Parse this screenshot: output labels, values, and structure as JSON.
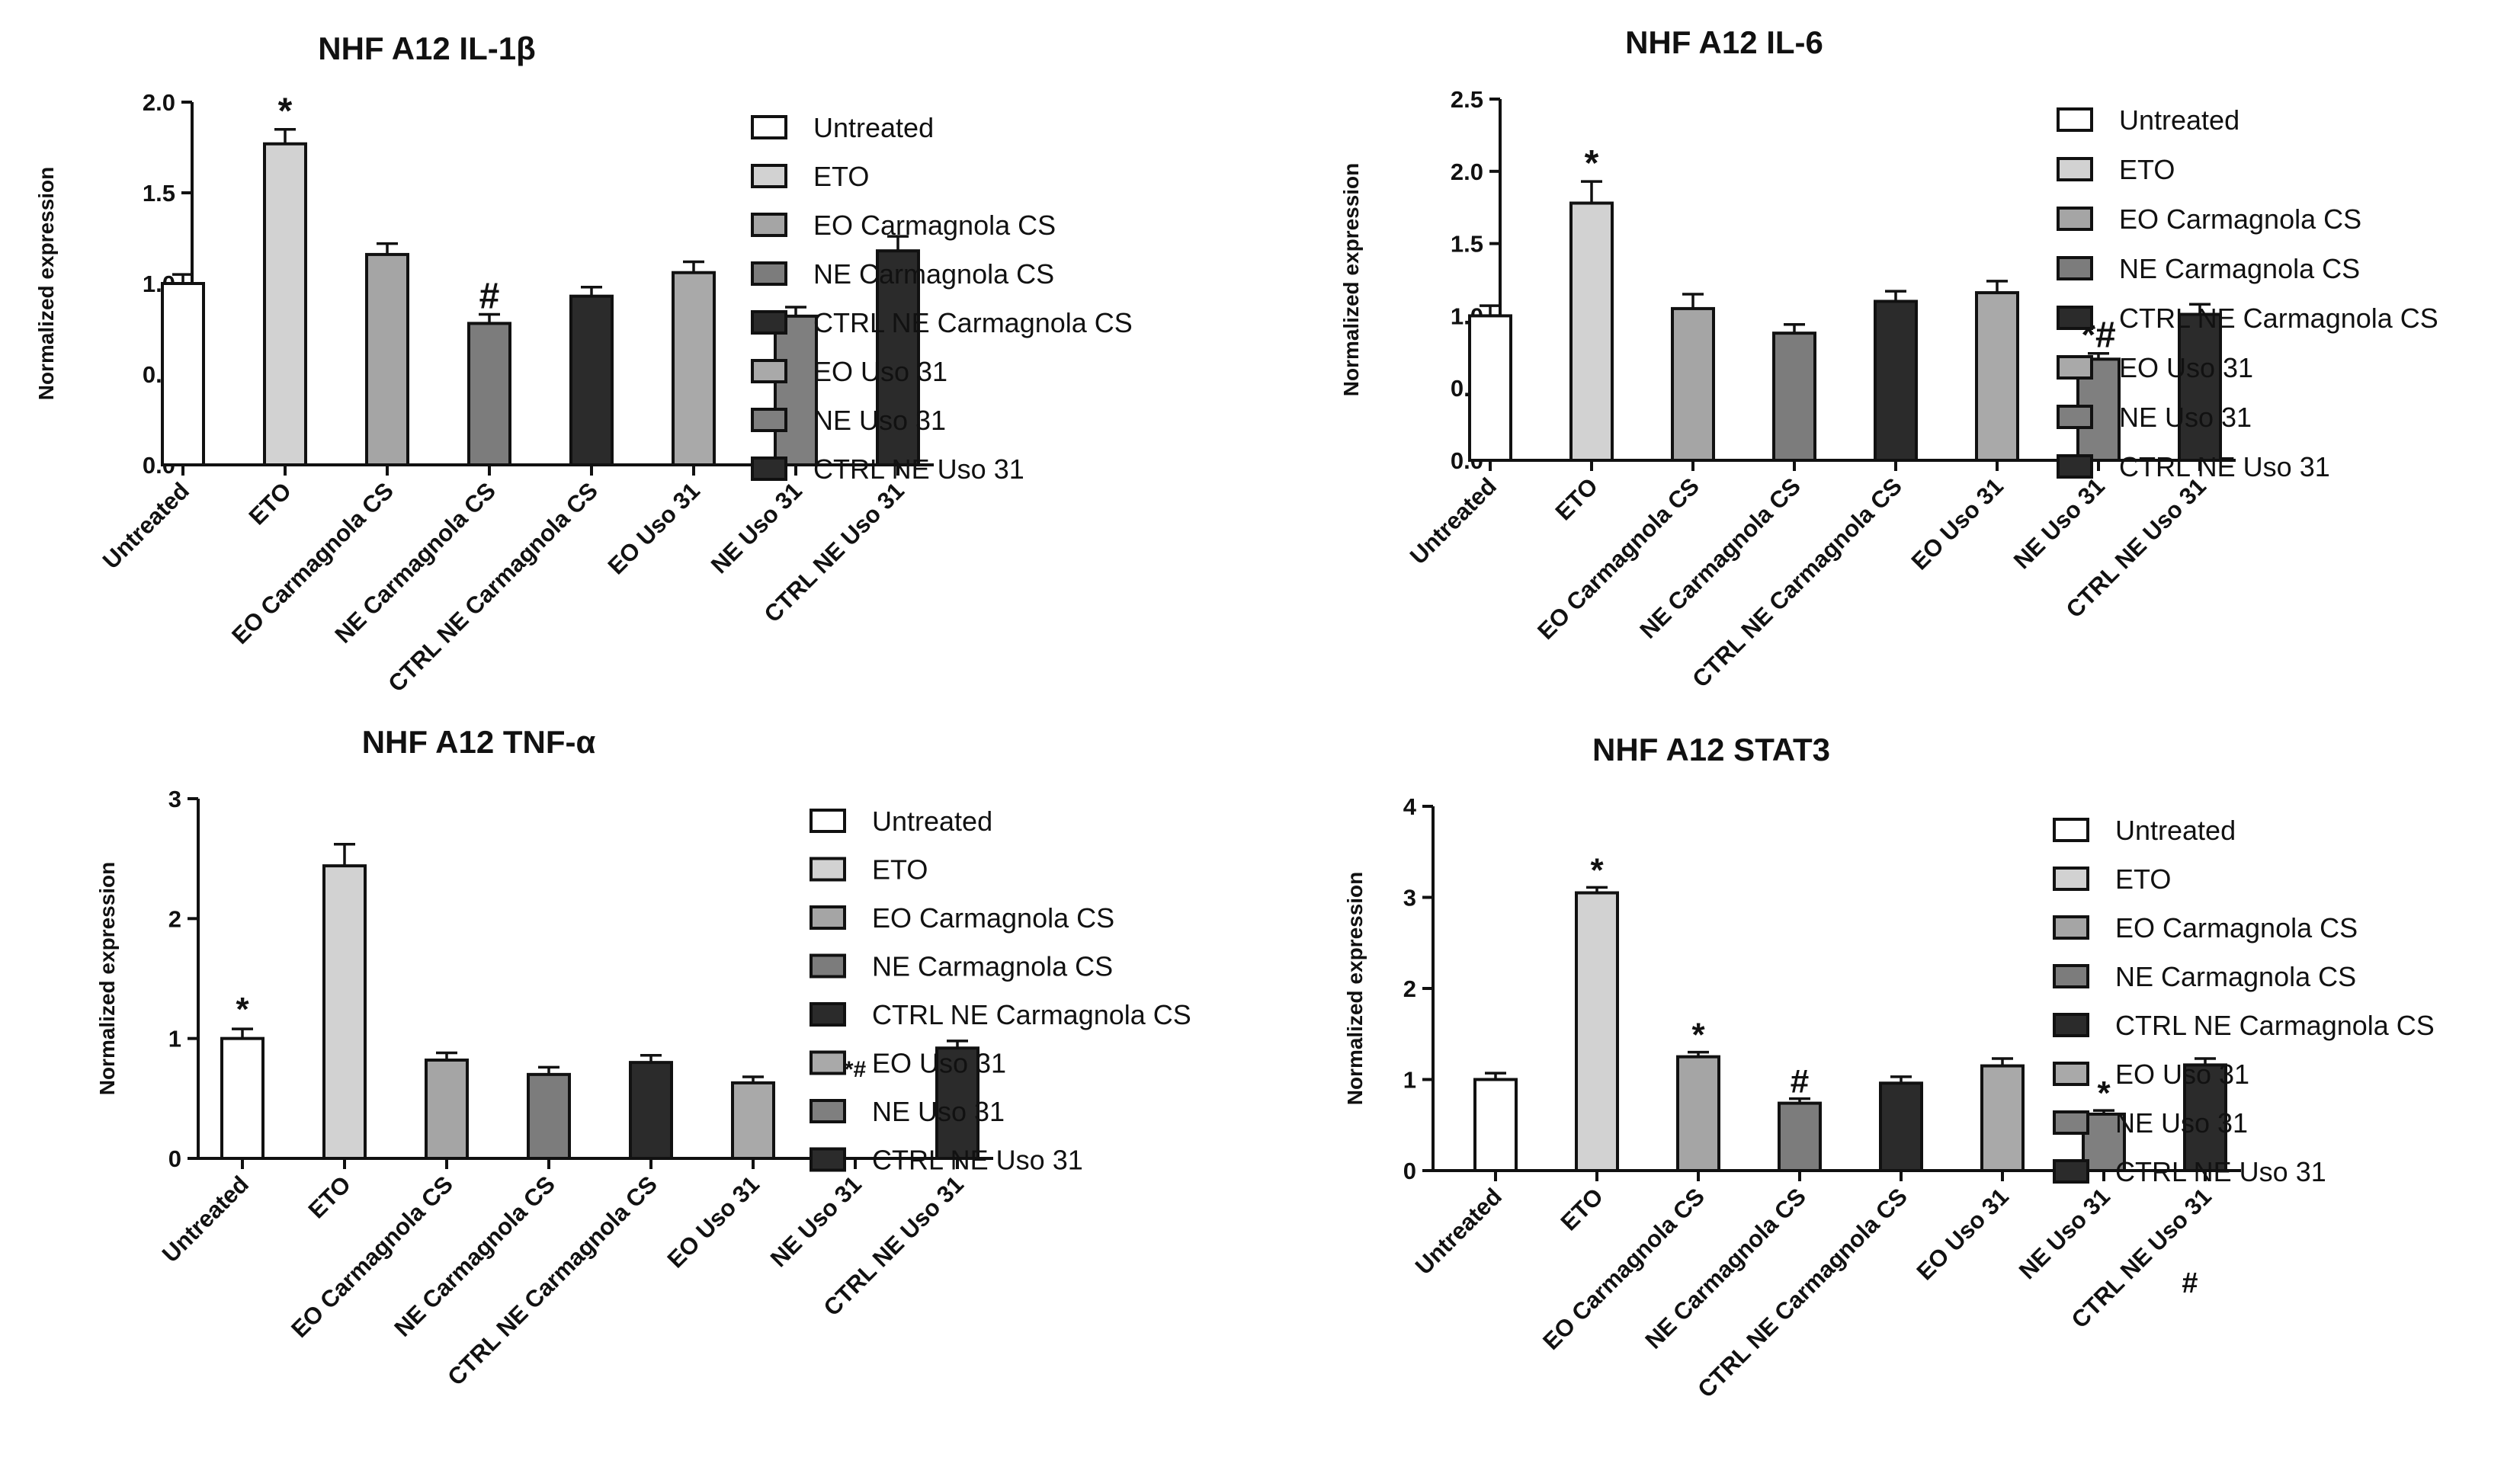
{
  "categories": [
    "Untreated",
    "ETO",
    "EO Carmagnola CS",
    "NE Carmagnola CS",
    "CTRL NE Carmagnola CS",
    "EO Uso 31",
    "NE Uso 31",
    "CTRL NE Uso 31"
  ],
  "legend": [
    "Untreated",
    "ETO",
    "EO Carmagnola CS",
    "NE Carmagnola CS",
    "CTRL NE Carmagnola CS",
    "EO Uso 31",
    "NE Uso 31",
    "CTRL NE Uso 31"
  ],
  "colors": [
    "#ffffff",
    "#d2d2d2",
    "#a5a5a5",
    "#7c7c7c",
    "#2b2b2b",
    "#a9a9a9",
    "#7f7f7f",
    "#2b2b2b"
  ],
  "chart_data": [
    {
      "type": "bar",
      "title": "NHF A12    IL-1β",
      "ylabel": "Normalized expression",
      "categories": [
        "Untreated",
        "ETO",
        "EO Carmagnola CS",
        "NE Carmagnola CS",
        "CTRL NE Carmagnola CS",
        "EO Uso 31",
        "NE Uso 31",
        "CTRL NE Uso 31"
      ],
      "values": [
        1.0,
        1.77,
        1.16,
        0.78,
        0.93,
        1.06,
        0.82,
        1.18
      ],
      "errors": [
        0.05,
        0.08,
        0.06,
        0.05,
        0.05,
        0.06,
        0.05,
        0.08
      ],
      "annotations": [
        "",
        "*",
        "",
        "#",
        "",
        "",
        "",
        ""
      ],
      "yticks": [
        "0.0",
        "0.5",
        "1.0",
        "1.5",
        "2.0"
      ],
      "ylim": [
        0,
        2.0
      ]
    },
    {
      "type": "bar",
      "title": "NHF A12 IL-6",
      "ylabel": "Normalized expression",
      "categories": [
        "Untreated",
        "ETO",
        "EO Carmagnola CS",
        "NE Carmagnola CS",
        "CTRL NE Carmagnola CS",
        "EO Uso 31",
        "NE Uso 31",
        "CTRL NE Uso 31"
      ],
      "values": [
        1.0,
        1.78,
        1.05,
        0.88,
        1.1,
        1.16,
        0.7,
        1.01
      ],
      "errors": [
        0.07,
        0.15,
        0.1,
        0.06,
        0.07,
        0.08,
        0.04,
        0.07
      ],
      "annotations": [
        "",
        "*",
        "",
        "",
        "",
        "",
        "*#",
        ""
      ],
      "yticks": [
        "0.0",
        "0.5",
        "1.0",
        "1.5",
        "2.0",
        "2.5"
      ],
      "ylim": [
        0,
        2.5
      ]
    },
    {
      "type": "bar",
      "title": "NHF A12   TNF-α",
      "ylabel": "Normalized expression",
      "categories": [
        "Untreated",
        "ETO",
        "EO Carmagnola CS",
        "NE Carmagnola CS",
        "CTRL NE Carmagnola CS",
        "EO Uso 31",
        "NE Uso 31",
        "CTRL NE Uso 31"
      ],
      "values": [
        1.0,
        2.44,
        0.82,
        0.7,
        0.8,
        0.63,
        0.0,
        0.92
      ],
      "errors": [
        0.08,
        0.18,
        0.06,
        0.06,
        0.06,
        0.05,
        0.0,
        0.06
      ],
      "annotations": [
        "*",
        "",
        "",
        "",
        "",
        "",
        "*#",
        ""
      ],
      "yticks": [
        "0",
        "1",
        "2",
        "3"
      ],
      "ylim": [
        0,
        3
      ]
    },
    {
      "type": "bar",
      "title": "NHF A12  STAT3",
      "ylabel": "Normalized expression",
      "categories": [
        "Untreated",
        "ETO",
        "EO Carmagnola CS",
        "NE Carmagnola CS",
        "CTRL NE Carmagnola CS",
        "EO Uso 31",
        "NE Uso 31",
        "CTRL NE Uso 31"
      ],
      "values": [
        1.0,
        3.05,
        1.25,
        0.74,
        0.96,
        1.15,
        0.62,
        1.16
      ],
      "errors": [
        0.07,
        0.06,
        0.05,
        0.05,
        0.07,
        0.08,
        0.04,
        0.07
      ],
      "annotations": [
        "",
        "*",
        "*",
        "#",
        "",
        "",
        "*",
        ""
      ],
      "extra_marks": [
        "#"
      ],
      "yticks": [
        "0",
        "1",
        "2",
        "3",
        "4"
      ],
      "ylim": [
        0,
        4
      ]
    }
  ]
}
